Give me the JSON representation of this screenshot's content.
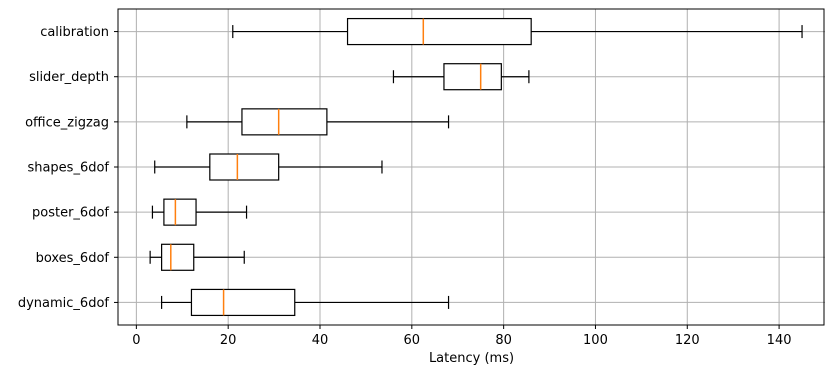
{
  "chart_data": {
    "type": "boxplot",
    "orientation": "horizontal",
    "title": "",
    "xlabel": "Latency (ms)",
    "ylabel": "",
    "xlim": [
      -4,
      150
    ],
    "xticks": [
      0,
      20,
      40,
      60,
      80,
      100,
      120,
      140
    ],
    "grid": true,
    "colors": {
      "box": "#000000",
      "median": "#ff7f0e",
      "grid": "#b0b0b0"
    },
    "categories": [
      "calibration",
      "slider_depth",
      "office_zigzag",
      "shapes_6dof",
      "poster_6dof",
      "boxes_6dof",
      "dynamic_6dof"
    ],
    "boxes": [
      {
        "label": "calibration",
        "whisker_low": 21,
        "q1": 46,
        "median": 62.5,
        "q3": 86,
        "whisker_high": 145
      },
      {
        "label": "slider_depth",
        "whisker_low": 56,
        "q1": 67,
        "median": 75,
        "q3": 79.5,
        "whisker_high": 85.5
      },
      {
        "label": "office_zigzag",
        "whisker_low": 11,
        "q1": 23,
        "median": 31,
        "q3": 41.5,
        "whisker_high": 68
      },
      {
        "label": "shapes_6dof",
        "whisker_low": 4,
        "q1": 16,
        "median": 22,
        "q3": 31,
        "whisker_high": 53.5
      },
      {
        "label": "poster_6dof",
        "whisker_low": 3.5,
        "q1": 6,
        "median": 8.5,
        "q3": 13,
        "whisker_high": 24
      },
      {
        "label": "boxes_6dof",
        "whisker_low": 3,
        "q1": 5.5,
        "median": 7.5,
        "q3": 12.5,
        "whisker_high": 23.5
      },
      {
        "label": "dynamic_6dof",
        "whisker_low": 5.5,
        "q1": 12,
        "median": 19,
        "q3": 34.5,
        "whisker_high": 68
      }
    ]
  }
}
